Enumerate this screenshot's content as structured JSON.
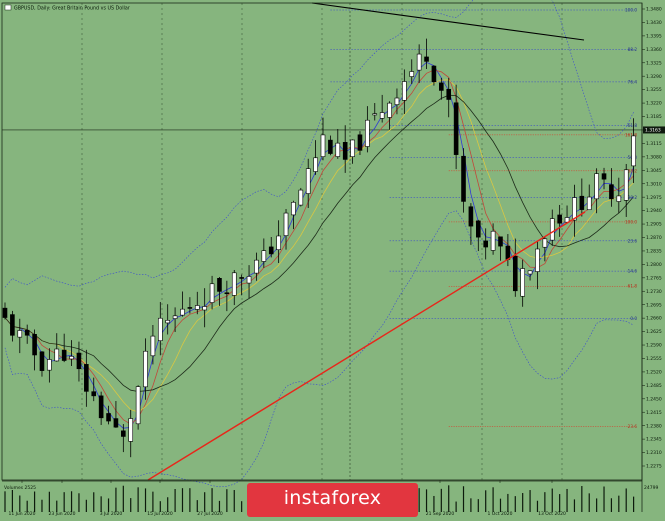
{
  "chart_data": {
    "type": "candlestick",
    "title": "GBPUSD, Daily: Great Britain Pound vs US Dollar",
    "symbol": "GBPUSD",
    "timeframe": "Daily",
    "instrument_name": "Great Britain Pound vs US Dollar",
    "price_labels": [
      "1.3480",
      "1.3430",
      "1.3395",
      "1.3360",
      "1.3325",
      "1.3290",
      "1.3255",
      "1.3220",
      "1.3185",
      "1.3150",
      "1.3115",
      "1.3080",
      "1.3045",
      "1.3010",
      "1.2975",
      "1.2940",
      "1.2905",
      "1.2870",
      "1.2835",
      "1.2800",
      "1.2765",
      "1.2730",
      "1.2695",
      "1.2660",
      "1.2625",
      "1.2590",
      "1.2555",
      "1.2520",
      "1.2485",
      "1.2450",
      "1.2415",
      "1.2380",
      "1.2345",
      "1.2310",
      "1.2275"
    ],
    "current_price": "1.3163",
    "date_labels": [
      "11 Jun 2020",
      "23 Jun 2020",
      "3 Jul 2020",
      "15 Jul 2020",
      "27 Jul 2020",
      "21 Sep 2020",
      "1 Oct 2020",
      "13 Oct 2020"
    ],
    "fib_labels": [
      "100.0",
      "88.2",
      "76.4",
      "61.8",
      "50.0",
      "38.2",
      "23.6",
      "14.6",
      "0.0"
    ],
    "extra_labels": [
      "161.8",
      "138.2",
      "100.0",
      "61.8",
      "23.6"
    ],
    "volume_label": "Volumes 2525",
    "volume_max_label": "24799",
    "colors": {
      "background": "#86b57e",
      "bull_candle": "#ffffff",
      "bear_candle": "#000000",
      "trendline": "#e8261a",
      "resistance": "#000000",
      "ma_fast": "#2f3ad6",
      "ma_mid": "#d9c742",
      "ma_slow": "#c1483a",
      "ma_long": "#1d2b1a",
      "bollinger": "#3b4bd0"
    }
  },
  "watermark": {
    "brand": "instaforex"
  }
}
